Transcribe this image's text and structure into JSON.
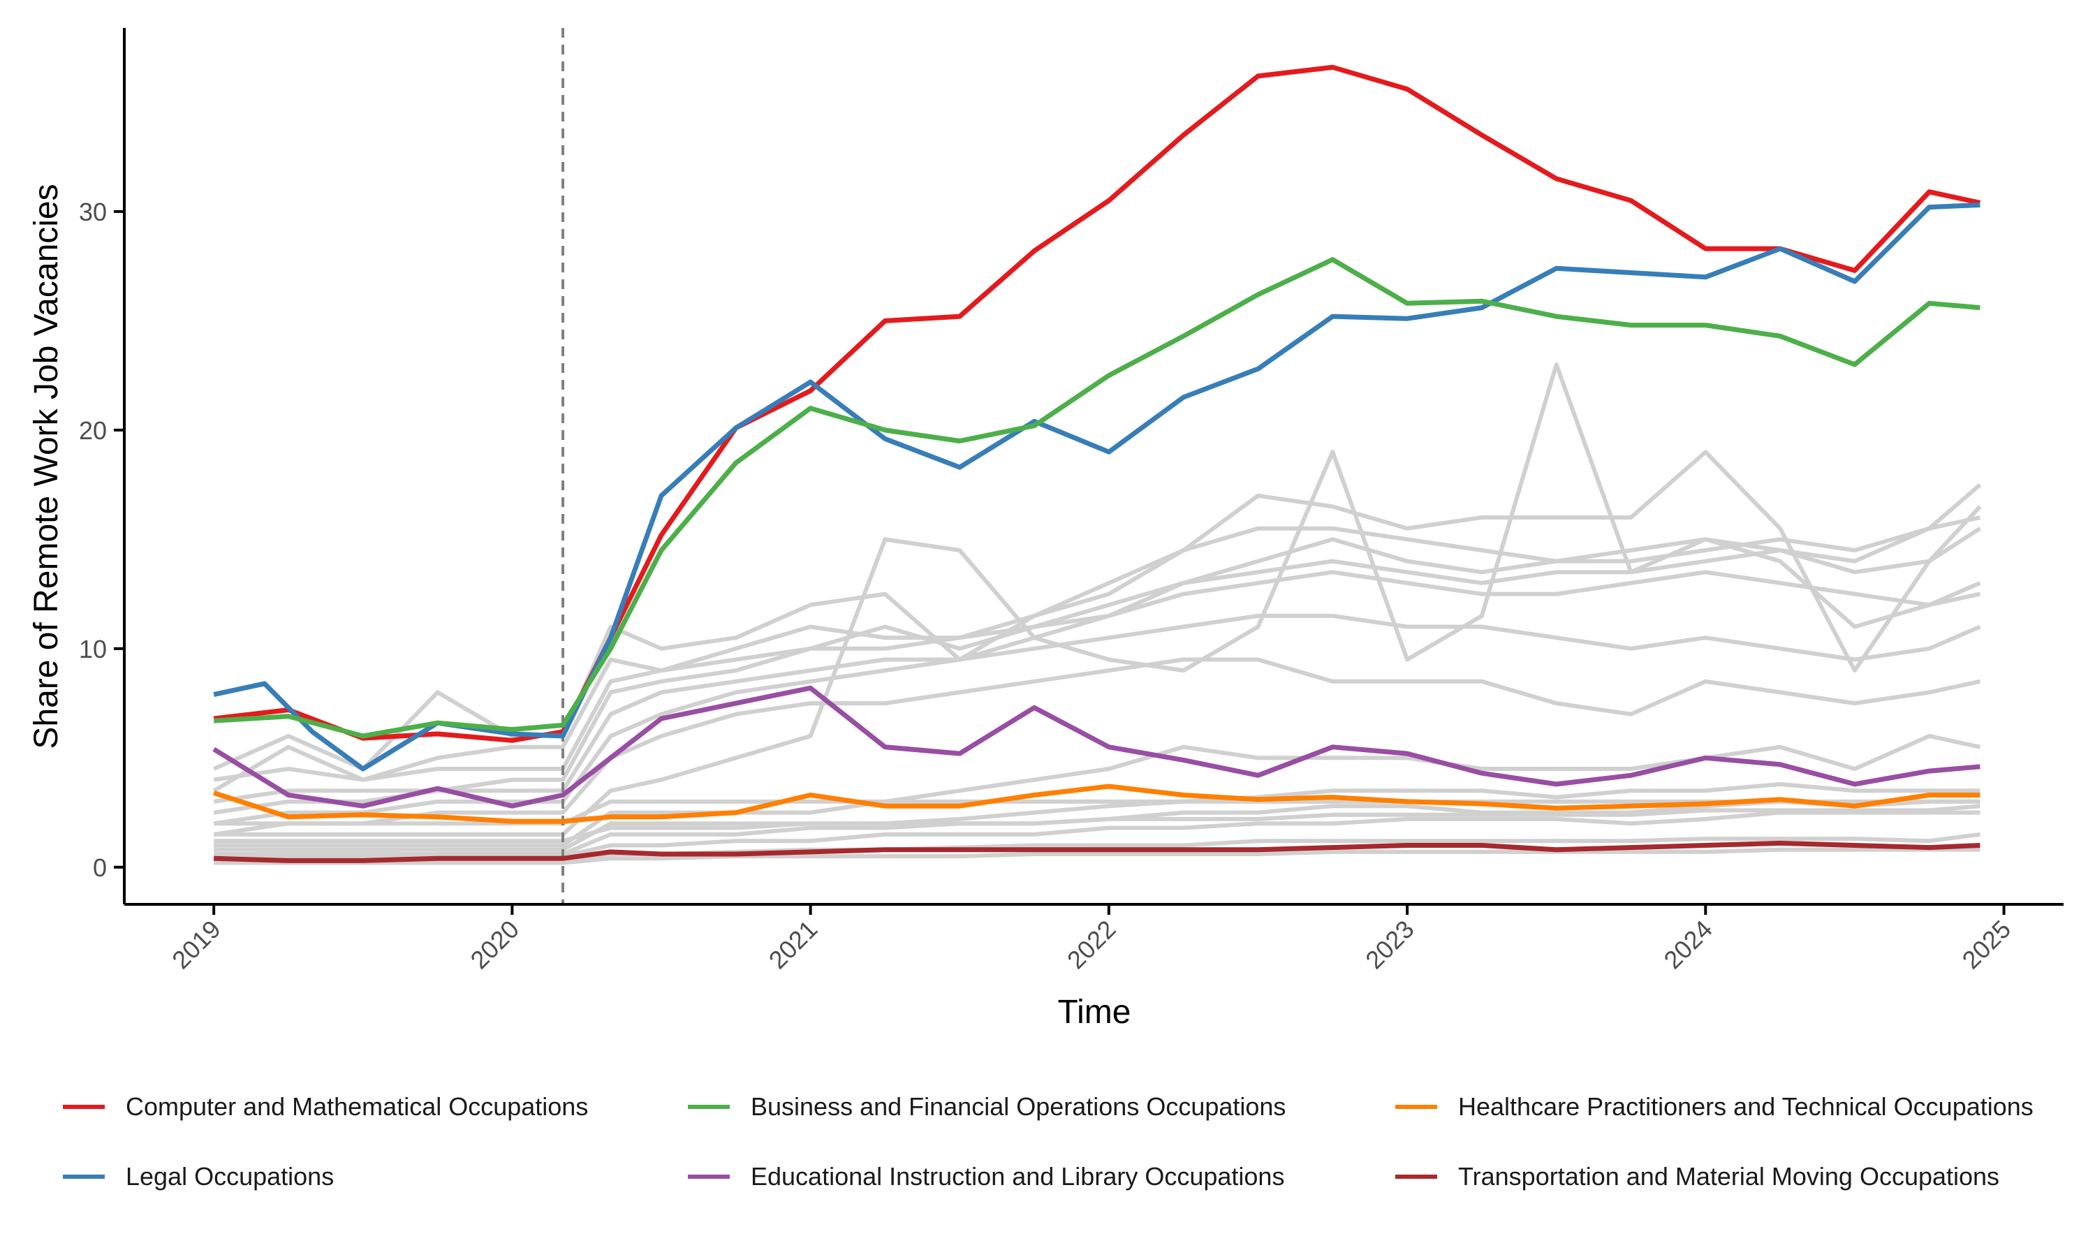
{
  "chart_data": {
    "type": "line",
    "xlabel": "Time",
    "ylabel": "Share of Remote Work Job Vacancies",
    "xlim": [
      2018.7,
      2025.2
    ],
    "ylim": [
      -1.7,
      38.4
    ],
    "x_ticks": [
      2019,
      2020,
      2021,
      2022,
      2023,
      2024,
      2025
    ],
    "y_ticks": [
      0,
      10,
      20,
      30
    ],
    "x_tick_labels": [
      "2019",
      "2020",
      "2021",
      "2022",
      "2023",
      "2024",
      "2025"
    ],
    "y_tick_labels": [
      "0",
      "10",
      "20",
      "30"
    ],
    "reference_line_x": 2020.17,
    "grid": false,
    "legend_position": "bottom",
    "highlighted_series": [
      {
        "name": "Computer and Mathematical Occupations",
        "color": "#e41a1c",
        "x": [
          2019.0,
          2019.25,
          2019.5,
          2019.75,
          2020.0,
          2020.17,
          2020.33,
          2020.5,
          2020.75,
          2021.0,
          2021.25,
          2021.5,
          2021.75,
          2022.0,
          2022.25,
          2022.5,
          2022.75,
          2023.0,
          2023.25,
          2023.5,
          2023.75,
          2024.0,
          2024.25,
          2024.5,
          2024.75,
          2024.92
        ],
        "y": [
          6.8,
          7.2,
          5.9,
          6.1,
          5.8,
          6.2,
          10.5,
          15.2,
          20.1,
          21.8,
          25.0,
          25.2,
          28.2,
          30.5,
          33.5,
          36.2,
          36.6,
          35.6,
          33.5,
          31.5,
          30.5,
          28.3,
          28.3,
          27.3,
          30.9,
          30.4
        ]
      },
      {
        "name": "Legal Occupations",
        "color": "#377eb8",
        "x": [
          2019.0,
          2019.17,
          2019.33,
          2019.5,
          2019.75,
          2020.0,
          2020.17,
          2020.33,
          2020.5,
          2020.75,
          2021.0,
          2021.25,
          2021.5,
          2021.75,
          2022.0,
          2022.25,
          2022.5,
          2022.75,
          2023.0,
          2023.25,
          2023.5,
          2023.75,
          2024.0,
          2024.25,
          2024.5,
          2024.75,
          2024.92
        ],
        "y": [
          7.9,
          8.4,
          6.2,
          4.5,
          6.6,
          6.1,
          6.0,
          10.5,
          17.0,
          20.1,
          22.2,
          19.6,
          18.3,
          20.4,
          19.0,
          21.5,
          22.8,
          25.2,
          25.1,
          25.6,
          27.4,
          27.2,
          27.0,
          28.3,
          26.8,
          30.2,
          30.3
        ]
      },
      {
        "name": "Business and Financial Operations Occupations",
        "color": "#4daf4a",
        "x": [
          2019.0,
          2019.25,
          2019.5,
          2019.75,
          2020.0,
          2020.17,
          2020.33,
          2020.5,
          2020.75,
          2021.0,
          2021.25,
          2021.5,
          2021.75,
          2022.0,
          2022.25,
          2022.5,
          2022.75,
          2023.0,
          2023.25,
          2023.5,
          2023.75,
          2024.0,
          2024.25,
          2024.5,
          2024.75,
          2024.92
        ],
        "y": [
          6.7,
          6.9,
          6.0,
          6.6,
          6.3,
          6.5,
          10.0,
          14.5,
          18.5,
          21.0,
          20.0,
          19.5,
          20.2,
          22.5,
          24.3,
          26.2,
          27.8,
          25.8,
          25.9,
          25.2,
          24.8,
          24.8,
          24.3,
          23.0,
          25.8,
          25.6
        ]
      },
      {
        "name": "Educational Instruction and Library Occupations",
        "color": "#984ea3",
        "x": [
          2019.0,
          2019.25,
          2019.5,
          2019.75,
          2020.0,
          2020.17,
          2020.33,
          2020.5,
          2020.75,
          2021.0,
          2021.25,
          2021.5,
          2021.75,
          2022.0,
          2022.25,
          2022.5,
          2022.75,
          2023.0,
          2023.25,
          2023.5,
          2023.75,
          2024.0,
          2024.25,
          2024.5,
          2024.75,
          2024.92
        ],
        "y": [
          5.4,
          3.3,
          2.8,
          3.6,
          2.8,
          3.3,
          5.0,
          6.8,
          7.5,
          8.2,
          5.5,
          5.2,
          7.3,
          5.5,
          4.9,
          4.2,
          5.5,
          5.2,
          4.3,
          3.8,
          4.2,
          5.0,
          4.7,
          3.8,
          4.4,
          4.6
        ]
      },
      {
        "name": "Healthcare Practitioners and Technical Occupations",
        "color": "#ff7f00",
        "x": [
          2019.0,
          2019.25,
          2019.5,
          2019.75,
          2020.0,
          2020.17,
          2020.33,
          2020.5,
          2020.75,
          2021.0,
          2021.25,
          2021.5,
          2021.75,
          2022.0,
          2022.25,
          2022.5,
          2022.75,
          2023.0,
          2023.25,
          2023.5,
          2023.75,
          2024.0,
          2024.25,
          2024.5,
          2024.75,
          2024.92
        ],
        "y": [
          3.4,
          2.3,
          2.4,
          2.3,
          2.1,
          2.1,
          2.3,
          2.3,
          2.5,
          3.3,
          2.8,
          2.8,
          3.3,
          3.7,
          3.3,
          3.1,
          3.2,
          3.0,
          2.9,
          2.7,
          2.8,
          2.9,
          3.1,
          2.8,
          3.3,
          3.3
        ]
      },
      {
        "name": "Transportation and Material Moving Occupations",
        "color": "#a6292d",
        "x": [
          2019.0,
          2019.25,
          2019.5,
          2019.75,
          2020.0,
          2020.17,
          2020.33,
          2020.5,
          2020.75,
          2021.0,
          2021.25,
          2021.5,
          2021.75,
          2022.0,
          2022.25,
          2022.5,
          2022.75,
          2023.0,
          2023.25,
          2023.5,
          2023.75,
          2024.0,
          2024.25,
          2024.5,
          2024.75,
          2024.92
        ],
        "y": [
          0.4,
          0.3,
          0.3,
          0.4,
          0.4,
          0.4,
          0.7,
          0.6,
          0.6,
          0.7,
          0.8,
          0.8,
          0.8,
          0.8,
          0.8,
          0.8,
          0.9,
          1.0,
          1.0,
          0.8,
          0.9,
          1.0,
          1.1,
          1.0,
          0.9,
          1.0
        ]
      }
    ],
    "background_series": {
      "color": "#d0d0d0",
      "x": [
        2019.0,
        2019.25,
        2019.5,
        2019.75,
        2020.0,
        2020.17,
        2020.33,
        2020.5,
        2020.75,
        2021.0,
        2021.25,
        2021.5,
        2021.75,
        2022.0,
        2022.25,
        2022.5,
        2022.75,
        2023.0,
        2023.25,
        2023.5,
        2023.75,
        2024.0,
        2024.25,
        2024.5,
        2024.75,
        2024.92
      ],
      "lines": [
        [
          4.5,
          6.0,
          4.5,
          8.0,
          6.0,
          6.0,
          11.0,
          10.0,
          10.5,
          12.0,
          12.5,
          9.5,
          11.5,
          12.5,
          14.5,
          17.0,
          16.5,
          15.5,
          16.0,
          16.0,
          16.0,
          19.0,
          15.5,
          9.0,
          14.0,
          15.5
        ],
        [
          3.5,
          5.5,
          4.0,
          5.0,
          5.5,
          5.5,
          9.5,
          9.0,
          10.0,
          11.0,
          10.5,
          10.5,
          11.5,
          13.0,
          14.5,
          15.5,
          15.5,
          15.0,
          14.5,
          14.0,
          14.5,
          15.0,
          14.5,
          14.0,
          15.5,
          16.0
        ],
        [
          4.0,
          4.5,
          4.0,
          4.5,
          4.5,
          4.5,
          8.5,
          9.0,
          9.5,
          10.0,
          11.0,
          10.0,
          11.0,
          11.5,
          13.0,
          14.0,
          15.0,
          14.0,
          13.5,
          14.0,
          14.0,
          14.5,
          15.0,
          14.5,
          15.5,
          17.5
        ],
        [
          3.0,
          3.5,
          3.5,
          3.5,
          4.0,
          4.0,
          8.0,
          8.5,
          9.0,
          10.0,
          10.0,
          10.5,
          11.0,
          12.0,
          13.0,
          13.5,
          14.0,
          13.5,
          13.0,
          13.5,
          13.5,
          14.0,
          14.5,
          13.5,
          14.0,
          16.5
        ],
        [
          2.5,
          3.0,
          3.0,
          3.5,
          3.5,
          3.5,
          7.0,
          8.0,
          8.5,
          9.0,
          9.5,
          9.5,
          10.5,
          11.5,
          12.5,
          13.0,
          13.5,
          13.0,
          12.5,
          12.5,
          13.0,
          13.5,
          13.0,
          12.5,
          12.0,
          12.5
        ],
        [
          2.0,
          2.5,
          2.5,
          3.0,
          3.0,
          3.0,
          6.0,
          7.0,
          8.0,
          8.5,
          9.0,
          9.5,
          10.0,
          10.5,
          11.0,
          11.5,
          11.5,
          11.0,
          11.0,
          10.5,
          10.0,
          10.5,
          10.0,
          9.5,
          10.0,
          11.0
        ],
        [
          1.5,
          2.0,
          2.0,
          2.5,
          2.5,
          2.5,
          5.0,
          6.0,
          7.0,
          7.5,
          7.5,
          8.0,
          8.5,
          9.0,
          9.5,
          9.5,
          8.5,
          8.5,
          8.5,
          7.5,
          7.0,
          8.5,
          8.0,
          7.5,
          8.0,
          8.5
        ],
        [
          1.5,
          1.5,
          1.5,
          1.5,
          1.5,
          1.5,
          3.5,
          4.0,
          5.0,
          6.0,
          15.0,
          14.5,
          10.5,
          9.5,
          9.0,
          11.0,
          19.0,
          9.5,
          11.5,
          23.0,
          13.5,
          15.0,
          14.0,
          11.0,
          12.0,
          13.0
        ],
        [
          1.0,
          1.0,
          1.0,
          1.0,
          1.0,
          1.0,
          2.5,
          2.5,
          2.5,
          2.5,
          3.0,
          3.5,
          4.0,
          4.5,
          5.5,
          5.0,
          5.0,
          5.0,
          4.5,
          4.5,
          4.5,
          5.0,
          5.5,
          4.5,
          6.0,
          5.5
        ],
        [
          0.8,
          0.8,
          0.8,
          0.8,
          0.8,
          0.8,
          2.0,
          2.0,
          2.0,
          2.0,
          2.0,
          2.2,
          2.5,
          2.8,
          3.0,
          3.2,
          3.5,
          3.5,
          3.5,
          3.2,
          3.5,
          3.5,
          3.8,
          3.5,
          3.5,
          3.5
        ],
        [
          0.6,
          0.6,
          0.6,
          0.6,
          0.6,
          0.6,
          1.5,
          1.5,
          1.5,
          1.8,
          1.8,
          2.0,
          2.0,
          2.2,
          2.5,
          2.5,
          2.8,
          2.8,
          2.5,
          2.5,
          2.5,
          2.8,
          3.0,
          2.8,
          3.0,
          3.0
        ],
        [
          0.5,
          0.5,
          0.5,
          0.5,
          0.5,
          0.5,
          1.0,
          1.0,
          1.2,
          1.2,
          1.5,
          1.5,
          1.5,
          1.8,
          1.8,
          2.0,
          2.0,
          2.2,
          2.2,
          2.2,
          2.0,
          2.2,
          2.5,
          2.5,
          2.5,
          2.5
        ],
        [
          0.3,
          0.3,
          0.3,
          0.3,
          0.3,
          0.3,
          0.6,
          0.6,
          0.7,
          0.8,
          0.8,
          0.9,
          1.0,
          1.0,
          1.0,
          1.2,
          1.2,
          1.2,
          1.2,
          1.2,
          1.2,
          1.3,
          1.3,
          1.3,
          1.2,
          1.5
        ],
        [
          0.2,
          0.2,
          0.2,
          0.2,
          0.2,
          0.2,
          0.4,
          0.4,
          0.5,
          0.5,
          0.5,
          0.5,
          0.6,
          0.6,
          0.6,
          0.6,
          0.7,
          0.7,
          0.7,
          0.7,
          0.7,
          0.7,
          0.8,
          0.8,
          0.8,
          0.8
        ],
        [
          2.0,
          2.0,
          2.0,
          2.0,
          2.0,
          2.0,
          3.0,
          3.0,
          3.0,
          3.0,
          3.0,
          3.0,
          3.0,
          3.0,
          3.0,
          3.0,
          3.0,
          3.0,
          3.0,
          3.0,
          3.0,
          3.0,
          3.0,
          3.0,
          3.0,
          3.0
        ],
        [
          1.2,
          1.2,
          1.2,
          1.2,
          1.2,
          1.2,
          1.8,
          1.8,
          1.8,
          2.0,
          2.0,
          2.0,
          2.0,
          2.2,
          2.2,
          2.2,
          2.4,
          2.4,
          2.4,
          2.4,
          2.4,
          2.6,
          2.6,
          2.6,
          2.6,
          2.8
        ]
      ]
    }
  }
}
